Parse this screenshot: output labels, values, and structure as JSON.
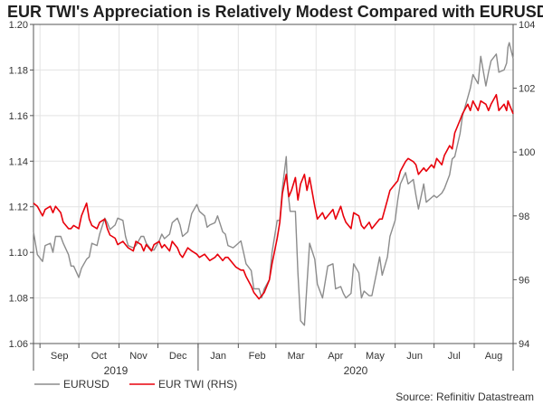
{
  "chart_data": {
    "type": "line",
    "title": "EUR TWI's Appreciation is Relatively Modest Compared with EURUSD",
    "source": "Source: Refinitiv Datastream",
    "x": {
      "months": [
        "Sep",
        "Oct",
        "Nov",
        "Dec",
        "Jan",
        "Feb",
        "Mar",
        "Apr",
        "May",
        "Jun",
        "Jul",
        "Aug"
      ],
      "years": [
        "2019",
        "2020"
      ],
      "range": [
        "2019-08-27",
        "2020-08-31"
      ]
    },
    "y_left": {
      "ticks": [
        "1.06",
        "1.08",
        "1.10",
        "1.12",
        "1.14",
        "1.16",
        "1.18",
        "1.20"
      ],
      "lim": [
        1.06,
        1.2
      ]
    },
    "y_right": {
      "ticks": [
        "94",
        "96",
        "98",
        "100",
        "102",
        "104"
      ],
      "lim": [
        94,
        104
      ]
    },
    "grid": true,
    "legend_position": "bottom-left",
    "series": [
      {
        "name": "EURUSD",
        "axis": "left",
        "color": "#8c8c8c",
        "points": [
          [
            "2019-08-27",
            1.109
          ],
          [
            "2019-08-30",
            1.099
          ],
          [
            "2019-09-03",
            1.096
          ],
          [
            "2019-09-05",
            1.103
          ],
          [
            "2019-09-09",
            1.104
          ],
          [
            "2019-09-11",
            1.1
          ],
          [
            "2019-09-13",
            1.107
          ],
          [
            "2019-09-17",
            1.107
          ],
          [
            "2019-09-19",
            1.104
          ],
          [
            "2019-09-23",
            1.099
          ],
          [
            "2019-09-25",
            1.094
          ],
          [
            "2019-09-27",
            1.094
          ],
          [
            "2019-10-01",
            1.089
          ],
          [
            "2019-10-03",
            1.093
          ],
          [
            "2019-10-07",
            1.097
          ],
          [
            "2019-10-09",
            1.098
          ],
          [
            "2019-10-11",
            1.104
          ],
          [
            "2019-10-15",
            1.103
          ],
          [
            "2019-10-17",
            1.108
          ],
          [
            "2019-10-21",
            1.115
          ],
          [
            "2019-10-23",
            1.113
          ],
          [
            "2019-10-25",
            1.11
          ],
          [
            "2019-10-29",
            1.112
          ],
          [
            "2019-10-31",
            1.115
          ],
          [
            "2019-11-04",
            1.114
          ],
          [
            "2019-11-06",
            1.107
          ],
          [
            "2019-11-08",
            1.103
          ],
          [
            "2019-11-12",
            1.102
          ],
          [
            "2019-11-14",
            1.103
          ],
          [
            "2019-11-18",
            1.107
          ],
          [
            "2019-11-20",
            1.107
          ],
          [
            "2019-11-22",
            1.104
          ],
          [
            "2019-11-26",
            1.101
          ],
          [
            "2019-11-28",
            1.101
          ],
          [
            "2019-12-02",
            1.105
          ],
          [
            "2019-12-04",
            1.108
          ],
          [
            "2019-12-06",
            1.106
          ],
          [
            "2019-12-10",
            1.108
          ],
          [
            "2019-12-12",
            1.113
          ],
          [
            "2019-12-16",
            1.115
          ],
          [
            "2019-12-18",
            1.112
          ],
          [
            "2019-12-20",
            1.107
          ],
          [
            "2019-12-24",
            1.109
          ],
          [
            "2019-12-27",
            1.117
          ],
          [
            "2019-12-31",
            1.121
          ],
          [
            "2020-01-02",
            1.118
          ],
          [
            "2020-01-06",
            1.116
          ],
          [
            "2020-01-08",
            1.111
          ],
          [
            "2020-01-10",
            1.112
          ],
          [
            "2020-01-14",
            1.113
          ],
          [
            "2020-01-16",
            1.116
          ],
          [
            "2020-01-20",
            1.109
          ],
          [
            "2020-01-22",
            1.108
          ],
          [
            "2020-01-24",
            1.103
          ],
          [
            "2020-01-28",
            1.102
          ],
          [
            "2020-01-30",
            1.103
          ],
          [
            "2020-02-03",
            1.105
          ],
          [
            "2020-02-05",
            1.1
          ],
          [
            "2020-02-07",
            1.095
          ],
          [
            "2020-02-11",
            1.092
          ],
          [
            "2020-02-13",
            1.084
          ],
          [
            "2020-02-17",
            1.084
          ],
          [
            "2020-02-19",
            1.08
          ],
          [
            "2020-02-21",
            1.084
          ],
          [
            "2020-02-25",
            1.088
          ],
          [
            "2020-02-27",
            1.1
          ],
          [
            "2020-03-02",
            1.114
          ],
          [
            "2020-03-04",
            1.114
          ],
          [
            "2020-03-06",
            1.128
          ],
          [
            "2020-03-09",
            1.142
          ],
          [
            "2020-03-10",
            1.128
          ],
          [
            "2020-03-12",
            1.118
          ],
          [
            "2020-03-16",
            1.118
          ],
          [
            "2020-03-18",
            1.091
          ],
          [
            "2020-03-20",
            1.07
          ],
          [
            "2020-03-23",
            1.068
          ],
          [
            "2020-03-25",
            1.086
          ],
          [
            "2020-03-27",
            1.104
          ],
          [
            "2020-03-31",
            1.097
          ],
          [
            "2020-04-02",
            1.086
          ],
          [
            "2020-04-06",
            1.08
          ],
          [
            "2020-04-08",
            1.087
          ],
          [
            "2020-04-10",
            1.094
          ],
          [
            "2020-04-14",
            1.095
          ],
          [
            "2020-04-16",
            1.084
          ],
          [
            "2020-04-20",
            1.085
          ],
          [
            "2020-04-22",
            1.082
          ],
          [
            "2020-04-24",
            1.08
          ],
          [
            "2020-04-28",
            1.082
          ],
          [
            "2020-04-30",
            1.095
          ],
          [
            "2020-05-04",
            1.091
          ],
          [
            "2020-05-06",
            1.08
          ],
          [
            "2020-05-08",
            1.083
          ],
          [
            "2020-05-12",
            1.081
          ],
          [
            "2020-05-14",
            1.081
          ],
          [
            "2020-05-18",
            1.092
          ],
          [
            "2020-05-20",
            1.098
          ],
          [
            "2020-05-22",
            1.09
          ],
          [
            "2020-05-26",
            1.098
          ],
          [
            "2020-05-28",
            1.107
          ],
          [
            "2020-06-01",
            1.114
          ],
          [
            "2020-06-03",
            1.123
          ],
          [
            "2020-06-05",
            1.13
          ],
          [
            "2020-06-09",
            1.135
          ],
          [
            "2020-06-11",
            1.13
          ],
          [
            "2020-06-15",
            1.132
          ],
          [
            "2020-06-17",
            1.125
          ],
          [
            "2020-06-19",
            1.119
          ],
          [
            "2020-06-23",
            1.13
          ],
          [
            "2020-06-25",
            1.122
          ],
          [
            "2020-06-29",
            1.124
          ],
          [
            "2020-07-01",
            1.125
          ],
          [
            "2020-07-03",
            1.124
          ],
          [
            "2020-07-07",
            1.126
          ],
          [
            "2020-07-09",
            1.128
          ],
          [
            "2020-07-13",
            1.134
          ],
          [
            "2020-07-15",
            1.141
          ],
          [
            "2020-07-17",
            1.142
          ],
          [
            "2020-07-21",
            1.152
          ],
          [
            "2020-07-23",
            1.16
          ],
          [
            "2020-07-27",
            1.168
          ],
          [
            "2020-07-29",
            1.172
          ],
          [
            "2020-07-31",
            1.178
          ],
          [
            "2020-08-04",
            1.174
          ],
          [
            "2020-08-06",
            1.186
          ],
          [
            "2020-08-10",
            1.173
          ],
          [
            "2020-08-12",
            1.179
          ],
          [
            "2020-08-14",
            1.184
          ],
          [
            "2020-08-18",
            1.187
          ],
          [
            "2020-08-20",
            1.179
          ],
          [
            "2020-08-24",
            1.18
          ],
          [
            "2020-08-26",
            1.183
          ],
          [
            "2020-08-27",
            1.19
          ],
          [
            "2020-08-28",
            1.192
          ],
          [
            "2020-08-31",
            1.185
          ]
        ]
      },
      {
        "name": "EUR TWI (RHS)",
        "axis": "right",
        "color": "#e8000b",
        "points": [
          [
            "2019-08-27",
            98.4
          ],
          [
            "2019-08-30",
            98.3
          ],
          [
            "2019-09-03",
            98.0
          ],
          [
            "2019-09-05",
            98.2
          ],
          [
            "2019-09-09",
            98.3
          ],
          [
            "2019-09-11",
            98.1
          ],
          [
            "2019-09-13",
            98.3
          ],
          [
            "2019-09-17",
            98.1
          ],
          [
            "2019-09-19",
            97.8
          ],
          [
            "2019-09-23",
            97.6
          ],
          [
            "2019-09-25",
            97.6
          ],
          [
            "2019-09-27",
            97.7
          ],
          [
            "2019-10-01",
            97.6
          ],
          [
            "2019-10-03",
            98.0
          ],
          [
            "2019-10-07",
            98.4
          ],
          [
            "2019-10-09",
            97.9
          ],
          [
            "2019-10-11",
            97.7
          ],
          [
            "2019-10-15",
            97.6
          ],
          [
            "2019-10-17",
            97.8
          ],
          [
            "2019-10-21",
            97.9
          ],
          [
            "2019-10-23",
            97.6
          ],
          [
            "2019-10-25",
            97.4
          ],
          [
            "2019-10-29",
            97.3
          ],
          [
            "2019-10-31",
            97.1
          ],
          [
            "2019-11-04",
            97.2
          ],
          [
            "2019-11-06",
            97.1
          ],
          [
            "2019-11-08",
            97.0
          ],
          [
            "2019-11-12",
            96.9
          ],
          [
            "2019-11-14",
            97.2
          ],
          [
            "2019-11-18",
            97.1
          ],
          [
            "2019-11-20",
            96.9
          ],
          [
            "2019-11-22",
            97.1
          ],
          [
            "2019-11-26",
            96.9
          ],
          [
            "2019-11-28",
            97.1
          ],
          [
            "2019-12-02",
            97.2
          ],
          [
            "2019-12-04",
            97.0
          ],
          [
            "2019-12-06",
            97.1
          ],
          [
            "2019-12-10",
            96.9
          ],
          [
            "2019-12-12",
            97.2
          ],
          [
            "2019-12-16",
            97.0
          ],
          [
            "2019-12-18",
            96.8
          ],
          [
            "2019-12-20",
            96.7
          ],
          [
            "2019-12-24",
            97.0
          ],
          [
            "2019-12-27",
            96.9
          ],
          [
            "2019-12-31",
            96.8
          ],
          [
            "2020-01-02",
            96.7
          ],
          [
            "2020-01-06",
            96.8
          ],
          [
            "2020-01-08",
            96.7
          ],
          [
            "2020-01-10",
            96.6
          ],
          [
            "2020-01-14",
            96.7
          ],
          [
            "2020-01-16",
            96.8
          ],
          [
            "2020-01-20",
            96.6
          ],
          [
            "2020-01-22",
            96.7
          ],
          [
            "2020-01-24",
            96.7
          ],
          [
            "2020-01-28",
            96.5
          ],
          [
            "2020-01-30",
            96.4
          ],
          [
            "2020-02-03",
            96.3
          ],
          [
            "2020-02-05",
            96.3
          ],
          [
            "2020-02-07",
            96.1
          ],
          [
            "2020-02-11",
            95.8
          ],
          [
            "2020-02-13",
            95.6
          ],
          [
            "2020-02-17",
            95.4
          ],
          [
            "2020-02-19",
            95.5
          ],
          [
            "2020-02-21",
            95.6
          ],
          [
            "2020-02-25",
            96.0
          ],
          [
            "2020-02-27",
            96.5
          ],
          [
            "2020-03-02",
            97.3
          ],
          [
            "2020-03-04",
            97.8
          ],
          [
            "2020-03-06",
            98.7
          ],
          [
            "2020-03-09",
            99.3
          ],
          [
            "2020-03-11",
            98.6
          ],
          [
            "2020-03-13",
            98.8
          ],
          [
            "2020-03-16",
            99.2
          ],
          [
            "2020-03-18",
            98.5
          ],
          [
            "2020-03-20",
            99.0
          ],
          [
            "2020-03-23",
            99.3
          ],
          [
            "2020-03-25",
            98.8
          ],
          [
            "2020-03-27",
            99.2
          ],
          [
            "2020-03-31",
            98.3
          ],
          [
            "2020-04-02",
            97.9
          ],
          [
            "2020-04-06",
            98.1
          ],
          [
            "2020-04-08",
            97.9
          ],
          [
            "2020-04-10",
            98.0
          ],
          [
            "2020-04-14",
            98.2
          ],
          [
            "2020-04-16",
            97.9
          ],
          [
            "2020-04-20",
            98.3
          ],
          [
            "2020-04-22",
            98.0
          ],
          [
            "2020-04-24",
            97.8
          ],
          [
            "2020-04-28",
            97.6
          ],
          [
            "2020-04-30",
            98.1
          ],
          [
            "2020-05-04",
            98.0
          ],
          [
            "2020-05-06",
            97.7
          ],
          [
            "2020-05-08",
            97.6
          ],
          [
            "2020-05-12",
            97.8
          ],
          [
            "2020-05-14",
            97.6
          ],
          [
            "2020-05-18",
            97.8
          ],
          [
            "2020-05-20",
            97.9
          ],
          [
            "2020-05-22",
            97.9
          ],
          [
            "2020-05-26",
            98.5
          ],
          [
            "2020-05-28",
            98.8
          ],
          [
            "2020-06-01",
            99.0
          ],
          [
            "2020-06-03",
            99.1
          ],
          [
            "2020-06-05",
            99.4
          ],
          [
            "2020-06-09",
            99.7
          ],
          [
            "2020-06-11",
            99.8
          ],
          [
            "2020-06-15",
            99.7
          ],
          [
            "2020-06-17",
            99.6
          ],
          [
            "2020-06-19",
            99.3
          ],
          [
            "2020-06-23",
            99.5
          ],
          [
            "2020-06-25",
            99.4
          ],
          [
            "2020-06-29",
            99.6
          ],
          [
            "2020-07-01",
            99.5
          ],
          [
            "2020-07-03",
            99.8
          ],
          [
            "2020-07-07",
            99.6
          ],
          [
            "2020-07-09",
            99.9
          ],
          [
            "2020-07-13",
            100.2
          ],
          [
            "2020-07-15",
            100.1
          ],
          [
            "2020-07-17",
            100.6
          ],
          [
            "2020-07-21",
            101.0
          ],
          [
            "2020-07-23",
            101.2
          ],
          [
            "2020-07-27",
            101.5
          ],
          [
            "2020-07-29",
            101.3
          ],
          [
            "2020-07-31",
            101.6
          ],
          [
            "2020-08-04",
            101.3
          ],
          [
            "2020-08-06",
            101.6
          ],
          [
            "2020-08-10",
            101.5
          ],
          [
            "2020-08-12",
            101.3
          ],
          [
            "2020-08-14",
            101.5
          ],
          [
            "2020-08-18",
            101.8
          ],
          [
            "2020-08-20",
            101.3
          ],
          [
            "2020-08-24",
            101.5
          ],
          [
            "2020-08-26",
            101.3
          ],
          [
            "2020-08-27",
            101.6
          ],
          [
            "2020-08-28",
            101.5
          ],
          [
            "2020-08-31",
            101.2
          ]
        ]
      }
    ]
  }
}
